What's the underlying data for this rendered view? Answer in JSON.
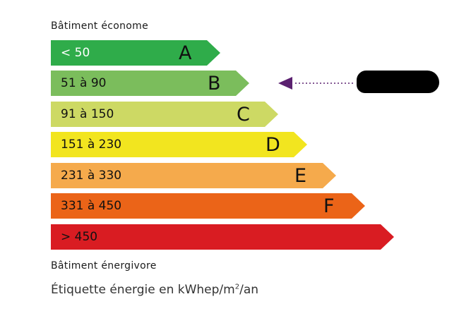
{
  "top_caption": "Bâtiment économe",
  "bottom_caption": "Bâtiment énergivore",
  "footer_base": "Étiquette énergie en kWhep/m",
  "footer_sup": "2",
  "footer_tail": "/an",
  "marker_class": "B",
  "marker_color": "#5b2170",
  "classes": [
    {
      "range": "< 50",
      "letter": "A",
      "color": "#2fac4a",
      "text_color": "#ffffff"
    },
    {
      "range": "51 à 90",
      "letter": "B",
      "color": "#7bbd5c",
      "text_color": "#111111"
    },
    {
      "range": "91 à 150",
      "letter": "C",
      "color": "#cdd964",
      "text_color": "#111111"
    },
    {
      "range": "151 à 230",
      "letter": "D",
      "color": "#f2e51f",
      "text_color": "#111111"
    },
    {
      "range": "231 à 330",
      "letter": "E",
      "color": "#f5aa4c",
      "text_color": "#111111"
    },
    {
      "range": "331 à 450",
      "letter": "F",
      "color": "#eb6418",
      "text_color": "#111111"
    },
    {
      "range": "> 450",
      "letter": "",
      "color": "#d91c22",
      "text_color": "#111111"
    }
  ]
}
